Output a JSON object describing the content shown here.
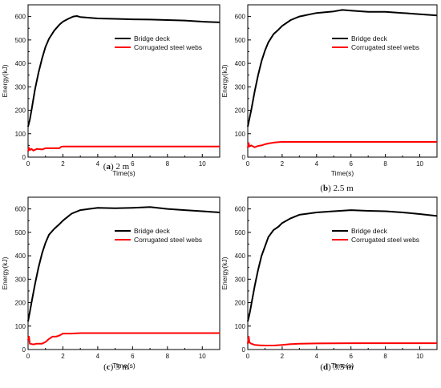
{
  "colors": {
    "deck": "#000000",
    "webs": "#ff0000",
    "axis": "#000000"
  },
  "chart_data": [
    {
      "type": "line",
      "caption": {
        "letter": "a",
        "text": "2 m"
      },
      "xlabel": "Time(s)",
      "ylabel": "Energy(kJ)",
      "xlim": [
        0,
        11
      ],
      "ylim": [
        0,
        650
      ],
      "xticks": [
        0,
        2,
        4,
        6,
        8,
        10
      ],
      "yticks": [
        0,
        100,
        200,
        300,
        400,
        500,
        600
      ],
      "legend": "top-right",
      "series": [
        {
          "name": "Bridge deck",
          "color": "#000000",
          "x": [
            0,
            0.1,
            0.2,
            0.4,
            0.6,
            0.8,
            1.0,
            1.2,
            1.5,
            1.8,
            2.0,
            2.3,
            2.6,
            2.8,
            3.0,
            3.5,
            4,
            5,
            6,
            7,
            8,
            9,
            10,
            11
          ],
          "y": [
            130,
            160,
            200,
            290,
            360,
            420,
            470,
            505,
            540,
            565,
            578,
            590,
            600,
            602,
            598,
            595,
            592,
            590,
            588,
            587,
            585,
            583,
            578,
            575
          ]
        },
        {
          "name": "Corrugated steel webs",
          "color": "#ff0000",
          "x": [
            0,
            0.05,
            0.1,
            0.2,
            0.3,
            0.5,
            0.8,
            1.0,
            1.5,
            1.8,
            1.9,
            2.0,
            3,
            4,
            6,
            8,
            10,
            11
          ],
          "y": [
            25,
            40,
            30,
            35,
            28,
            35,
            33,
            38,
            38,
            38,
            44,
            45,
            45,
            45,
            45,
            45,
            45,
            45
          ]
        }
      ]
    },
    {
      "type": "line",
      "caption": {
        "letter": "b",
        "text": "2.5 m"
      },
      "xlabel": "Time(s)",
      "ylabel": "Energy(kJ)",
      "xlim": [
        0,
        11
      ],
      "ylim": [
        0,
        650
      ],
      "xticks": [
        0,
        2,
        4,
        6,
        8,
        10
      ],
      "yticks": [
        0,
        100,
        200,
        300,
        400,
        500,
        600
      ],
      "legend": "top-right",
      "series": [
        {
          "name": "Bridge deck",
          "color": "#000000",
          "x": [
            0,
            0.1,
            0.2,
            0.4,
            0.6,
            0.8,
            1.0,
            1.2,
            1.5,
            1.8,
            2.0,
            2.5,
            3,
            4,
            5,
            5.5,
            6,
            7,
            8,
            9,
            10,
            11
          ],
          "y": [
            130,
            165,
            200,
            280,
            350,
            410,
            455,
            490,
            525,
            545,
            560,
            585,
            600,
            615,
            622,
            628,
            625,
            620,
            620,
            615,
            610,
            605
          ]
        },
        {
          "name": "Corrugated steel webs",
          "color": "#ff0000",
          "x": [
            0,
            0.05,
            0.1,
            0.2,
            0.4,
            0.6,
            0.8,
            1.0,
            1.2,
            1.5,
            1.8,
            2,
            3,
            4,
            6,
            8,
            10,
            11
          ],
          "y": [
            40,
            60,
            45,
            50,
            42,
            48,
            50,
            55,
            58,
            62,
            64,
            65,
            65,
            65,
            65,
            65,
            65,
            65
          ]
        }
      ]
    },
    {
      "type": "line",
      "caption": {
        "letter": "c",
        "text": "3 m"
      },
      "xlabel": "Time(s)",
      "ylabel": "Energy(kJ)",
      "xlim": [
        0,
        11
      ],
      "ylim": [
        0,
        650
      ],
      "xticks": [
        0,
        2,
        4,
        6,
        8,
        10
      ],
      "yticks": [
        0,
        100,
        200,
        300,
        400,
        500,
        600
      ],
      "legend": "top-right",
      "series": [
        {
          "name": "Bridge deck",
          "color": "#000000",
          "x": [
            0,
            0.1,
            0.2,
            0.4,
            0.6,
            0.8,
            1.0,
            1.2,
            1.5,
            1.8,
            2.0,
            2.5,
            3,
            3.5,
            4,
            5,
            6,
            7,
            8,
            9,
            10,
            11
          ],
          "y": [
            120,
            160,
            200,
            280,
            350,
            410,
            455,
            490,
            515,
            535,
            550,
            580,
            595,
            600,
            605,
            603,
            605,
            608,
            600,
            595,
            590,
            585
          ]
        },
        {
          "name": "Corrugated steel webs",
          "color": "#ff0000",
          "x": [
            0,
            0.05,
            0.1,
            0.3,
            0.5,
            0.8,
            1.0,
            1.2,
            1.4,
            1.6,
            1.8,
            2.0,
            2.5,
            3,
            4,
            6,
            8,
            10,
            11
          ],
          "y": [
            40,
            55,
            25,
            22,
            25,
            25,
            32,
            45,
            55,
            55,
            60,
            68,
            68,
            70,
            70,
            70,
            70,
            70,
            70
          ]
        }
      ]
    },
    {
      "type": "line",
      "caption": {
        "letter": "d",
        "text": "3.5 m"
      },
      "xlabel": "Time(s)",
      "ylabel": "Energy(kJ)",
      "xlim": [
        0,
        11
      ],
      "ylim": [
        0,
        650
      ],
      "xticks": [
        0,
        2,
        4,
        6,
        8,
        10
      ],
      "yticks": [
        0,
        100,
        200,
        300,
        400,
        500,
        600
      ],
      "legend": "top-right",
      "series": [
        {
          "name": "Bridge deck",
          "color": "#000000",
          "x": [
            0,
            0.1,
            0.2,
            0.4,
            0.6,
            0.8,
            1.0,
            1.2,
            1.5,
            1.8,
            2.0,
            2.5,
            3,
            4,
            5,
            6,
            7,
            8,
            9,
            10,
            11
          ],
          "y": [
            120,
            150,
            190,
            270,
            340,
            400,
            440,
            480,
            510,
            525,
            540,
            560,
            575,
            585,
            590,
            595,
            592,
            590,
            585,
            578,
            570
          ]
        },
        {
          "name": "Corrugated steel webs",
          "color": "#ff0000",
          "x": [
            0,
            0.05,
            0.1,
            0.2,
            0.4,
            0.7,
            1.0,
            1.5,
            2.0,
            2.5,
            3,
            4,
            6,
            8,
            10,
            11
          ],
          "y": [
            25,
            55,
            30,
            25,
            20,
            18,
            17,
            17,
            20,
            23,
            25,
            26,
            27,
            27,
            27,
            27
          ]
        }
      ]
    }
  ]
}
